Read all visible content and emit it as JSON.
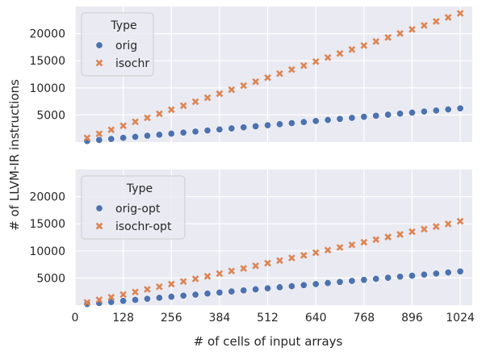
{
  "chart_data": {
    "type": "scatter",
    "xlabel": "# of cells of input arrays",
    "ylabel": "# of LLVM-IR instructions",
    "xlim": [
      0,
      1056
    ],
    "xticks": [
      0,
      128,
      256,
      384,
      512,
      640,
      768,
      896,
      1024
    ],
    "xtick_labels": [
      "0",
      "128",
      "256",
      "384",
      "512",
      "640",
      "768",
      "896",
      "1024"
    ],
    "x": [
      32,
      64,
      96,
      128,
      160,
      192,
      224,
      256,
      288,
      320,
      352,
      384,
      416,
      448,
      480,
      512,
      544,
      576,
      608,
      640,
      672,
      704,
      736,
      768,
      800,
      832,
      864,
      896,
      928,
      960,
      992,
      1024
    ],
    "grid": true,
    "panels": [
      {
        "ylim": [
          0,
          25000
        ],
        "yticks": [
          5000,
          10000,
          15000,
          20000
        ],
        "ytick_labels": [
          "5000",
          "10000",
          "15000",
          "20000"
        ],
        "legend": {
          "title": "Type",
          "placement": "top-left"
        },
        "series": [
          {
            "name": "orig",
            "marker": "circle",
            "color": "#4c72b0",
            "values": [
              200,
              390,
              580,
              780,
              970,
              1170,
              1360,
              1550,
              1750,
              1940,
              2140,
              2330,
              2520,
              2720,
              2910,
              3110,
              3300,
              3490,
              3690,
              3880,
              4080,
              4270,
              4460,
              4660,
              4850,
              5050,
              5240,
              5430,
              5630,
              5820,
              6020,
              6210
            ]
          },
          {
            "name": "isochr",
            "marker": "x",
            "color": "#dd8452",
            "values": [
              780,
              1520,
              2260,
              3000,
              3740,
              4480,
              5220,
              5960,
              6700,
              7440,
              8180,
              8920,
              9660,
              10400,
              11140,
              11880,
              12620,
              13360,
              14100,
              14840,
              15580,
              16320,
              17060,
              17800,
              18540,
              19280,
              20020,
              20760,
              21500,
              22240,
              22980,
              23720
            ]
          }
        ]
      },
      {
        "ylim": [
          0,
          25000
        ],
        "yticks": [
          5000,
          10000,
          15000,
          20000
        ],
        "ytick_labels": [
          "5000",
          "10000",
          "15000",
          "20000"
        ],
        "legend": {
          "title": "Type",
          "placement": "top-left"
        },
        "series": [
          {
            "name": "orig-opt",
            "marker": "circle",
            "color": "#4c72b0",
            "values": [
              200,
              390,
              580,
              780,
              970,
              1170,
              1360,
              1550,
              1750,
              1940,
              2140,
              2330,
              2520,
              2720,
              2910,
              3110,
              3300,
              3490,
              3690,
              3880,
              4080,
              4270,
              4460,
              4660,
              4850,
              5050,
              5240,
              5430,
              5630,
              5820,
              6020,
              6210
            ]
          },
          {
            "name": "isochr-opt",
            "marker": "x",
            "color": "#dd8452",
            "values": [
              500,
              980,
              1460,
              1950,
              2430,
              2910,
              3390,
              3880,
              4360,
              4840,
              5320,
              5810,
              6290,
              6770,
              7250,
              7740,
              8220,
              8700,
              9180,
              9670,
              10150,
              10630,
              11110,
              11600,
              12080,
              12560,
              13040,
              13530,
              14010,
              14490,
              14970,
              15460
            ]
          }
        ]
      }
    ]
  }
}
